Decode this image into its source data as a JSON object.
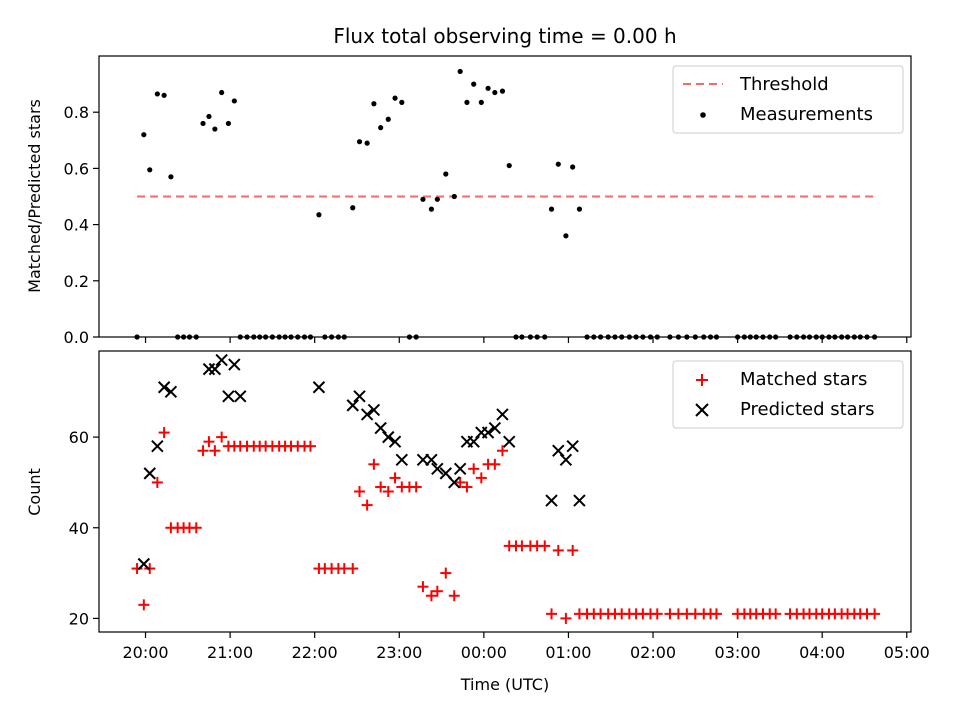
{
  "chart_data": [
    {
      "type": "scatter",
      "title": "Flux total observing time = 0.00 h",
      "xlabel": "",
      "ylabel": "Matched/Predicted stars",
      "ylim": [
        0,
        1.0
      ],
      "yticks": [
        "0.0",
        "0.2",
        "0.4",
        "0.6",
        "0.8"
      ],
      "ytick_values": [
        0,
        0.2,
        0.4,
        0.6,
        0.8
      ],
      "legend": "top-right",
      "threshold": {
        "name": "Threshold",
        "value": 0.5,
        "x_start": 19.9,
        "x_end": 28.65,
        "color": "#ff6666"
      },
      "series": [
        {
          "name": "Measurements",
          "color": "#000000",
          "marker": "dot",
          "x": [
            19.9,
            19.98,
            20.05,
            20.14,
            20.22,
            20.3,
            20.38,
            20.45,
            20.52,
            20.6,
            20.68,
            20.75,
            20.82,
            20.9,
            20.98,
            21.05,
            21.12,
            21.2,
            21.28,
            21.35,
            21.42,
            21.5,
            21.58,
            21.65,
            21.72,
            21.8,
            21.88,
            21.95,
            22.05,
            22.12,
            22.2,
            22.28,
            22.35,
            22.45,
            22.53,
            22.62,
            22.7,
            22.78,
            22.87,
            22.95,
            23.03,
            23.12,
            23.2,
            23.28,
            23.38,
            23.45,
            23.55,
            23.65,
            23.72,
            23.8,
            23.88,
            23.97,
            24.05,
            24.13,
            24.22,
            24.3,
            24.38,
            24.45,
            24.55,
            24.63,
            24.72,
            24.8,
            24.88,
            24.97,
            25.05,
            25.13,
            25.22,
            25.3,
            25.38,
            25.47,
            25.55,
            25.63,
            25.72,
            25.8,
            25.88,
            25.97,
            26.05,
            26.2,
            26.3,
            26.4,
            26.5,
            26.6,
            26.68,
            26.75,
            27.0,
            27.08,
            27.15,
            27.22,
            27.3,
            27.38,
            27.45,
            27.62,
            27.7,
            27.78,
            27.85,
            27.93,
            28.0,
            28.08,
            28.15,
            28.23,
            28.3,
            28.38,
            28.45,
            28.53,
            28.62
          ],
          "y": [
            0.0,
            0.72,
            0.595,
            0.865,
            0.86,
            0.57,
            0.0,
            0.0,
            0.0,
            0.0,
            0.76,
            0.785,
            0.74,
            0.87,
            0.76,
            0.84,
            0.0,
            0.0,
            0.0,
            0.0,
            0.0,
            0.0,
            0.0,
            0.0,
            0.0,
            0.0,
            0.0,
            0.0,
            0.435,
            0.0,
            0.0,
            0.0,
            0.0,
            0.46,
            0.695,
            0.69,
            0.83,
            0.745,
            0.775,
            0.85,
            0.835,
            0.0,
            0.0,
            0.49,
            0.455,
            0.49,
            0.58,
            0.5,
            0.945,
            0.835,
            0.9,
            0.835,
            0.885,
            0.87,
            0.875,
            0.61,
            0.0,
            0.0,
            0.0,
            0.0,
            0.0,
            0.455,
            0.615,
            0.36,
            0.605,
            0.455,
            0.0,
            0.0,
            0.0,
            0.0,
            0.0,
            0.0,
            0.0,
            0.0,
            0.0,
            0.0,
            0.0,
            0.0,
            0.0,
            0.0,
            0.0,
            0.0,
            0.0,
            0.0,
            0.0,
            0.0,
            0.0,
            0.0,
            0.0,
            0.0,
            0.0,
            0.0,
            0.0,
            0.0,
            0.0,
            0.0,
            0.0,
            0.0,
            0.0,
            0.0,
            0.0,
            0.0,
            0.0,
            0.0,
            0.0
          ]
        }
      ]
    },
    {
      "type": "scatter",
      "title": "",
      "xlabel": "Time (UTC)",
      "ylabel": "Count",
      "ylim": [
        17,
        79
      ],
      "yticks": [
        "20",
        "40",
        "60"
      ],
      "ytick_values": [
        20,
        40,
        60
      ],
      "xlim": [
        19.45,
        29.05
      ],
      "xticks": [
        "20:00",
        "21:00",
        "22:00",
        "23:00",
        "00:00",
        "01:00",
        "02:00",
        "03:00",
        "04:00",
        "05:00"
      ],
      "xtick_values": [
        20,
        21,
        22,
        23,
        24,
        25,
        26,
        27,
        28,
        29
      ],
      "legend": "top-right",
      "series": [
        {
          "name": "Matched stars",
          "color": "#ff0000",
          "marker": "plus",
          "x": [
            19.9,
            19.98,
            20.05,
            20.14,
            20.22,
            20.3,
            20.38,
            20.45,
            20.52,
            20.6,
            20.68,
            20.75,
            20.82,
            20.9,
            20.98,
            21.05,
            21.12,
            21.2,
            21.28,
            21.35,
            21.42,
            21.5,
            21.58,
            21.65,
            21.72,
            21.8,
            21.88,
            21.95,
            22.05,
            22.12,
            22.2,
            22.28,
            22.35,
            22.45,
            22.53,
            22.62,
            22.7,
            22.78,
            22.87,
            22.95,
            23.03,
            23.12,
            23.2,
            23.28,
            23.38,
            23.45,
            23.55,
            23.65,
            23.72,
            23.8,
            23.88,
            23.97,
            24.05,
            24.13,
            24.22,
            24.3,
            24.38,
            24.45,
            24.55,
            24.63,
            24.72,
            24.8,
            24.88,
            24.97,
            25.05,
            25.13,
            25.22,
            25.3,
            25.38,
            25.47,
            25.55,
            25.63,
            25.72,
            25.8,
            25.88,
            25.97,
            26.05,
            26.2,
            26.3,
            26.4,
            26.5,
            26.6,
            26.68,
            26.75,
            27.0,
            27.08,
            27.15,
            27.22,
            27.3,
            27.38,
            27.45,
            27.62,
            27.7,
            27.78,
            27.85,
            27.93,
            28.0,
            28.08,
            28.15,
            28.23,
            28.3,
            28.38,
            28.45,
            28.53,
            28.62
          ],
          "y": [
            31,
            23,
            31,
            50,
            61,
            40,
            40,
            40,
            40,
            40,
            57,
            59,
            57,
            60,
            58,
            58,
            58,
            58,
            58,
            58,
            58,
            58,
            58,
            58,
            58,
            58,
            58,
            58,
            31,
            31,
            31,
            31,
            31,
            31,
            48,
            45,
            54,
            49,
            48,
            51,
            49,
            49,
            49,
            27,
            25,
            26,
            30,
            25,
            50,
            49,
            53,
            51,
            54,
            54,
            57,
            36,
            36,
            36,
            36,
            36,
            36,
            21,
            35,
            20,
            35,
            21,
            21,
            21,
            21,
            21,
            21,
            21,
            21,
            21,
            21,
            21,
            21,
            21,
            21,
            21,
            21,
            21,
            21,
            21,
            21,
            21,
            21,
            21,
            21,
            21,
            21,
            21,
            21,
            21,
            21,
            21,
            21,
            21,
            21,
            21,
            21,
            21,
            21,
            21,
            21
          ]
        },
        {
          "name": "Predicted stars",
          "color": "#000000",
          "marker": "x",
          "x": [
            19.98,
            20.05,
            20.14,
            20.22,
            20.3,
            20.75,
            20.82,
            20.9,
            20.98,
            21.05,
            21.12,
            22.05,
            22.45,
            22.53,
            22.62,
            22.7,
            22.78,
            22.87,
            22.95,
            23.03,
            23.28,
            23.38,
            23.45,
            23.55,
            23.65,
            23.72,
            23.8,
            23.88,
            23.97,
            24.05,
            24.13,
            24.22,
            24.3,
            24.8,
            24.88,
            24.97,
            25.05,
            25.13
          ],
          "y": [
            32,
            52,
            58,
            71,
            70,
            75,
            75,
            77,
            69,
            76,
            69,
            71,
            67,
            69,
            65,
            66,
            62,
            60,
            59,
            55,
            55,
            55,
            53,
            52,
            50,
            53,
            59,
            59,
            61,
            61,
            62,
            65,
            59,
            46,
            57,
            55,
            58,
            46
          ]
        }
      ]
    }
  ]
}
